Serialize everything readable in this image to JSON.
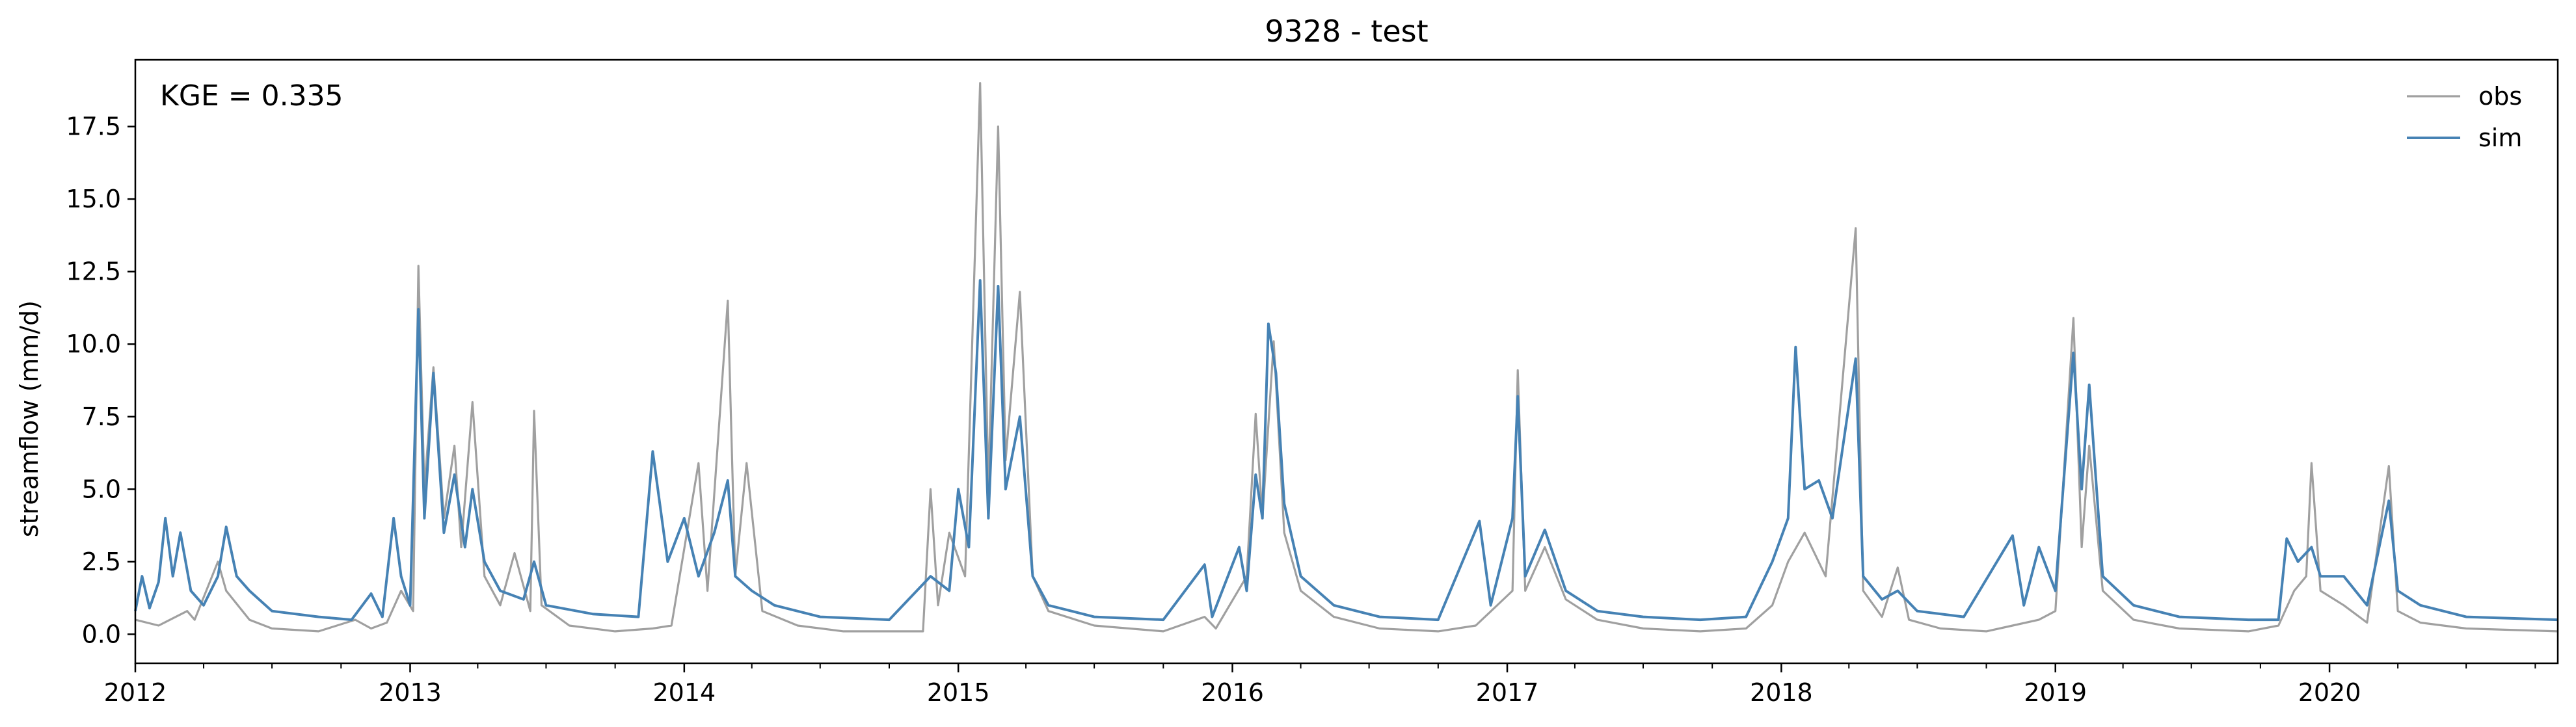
{
  "chart_data": {
    "type": "line",
    "title": "9328 - test",
    "xlabel": "",
    "ylabel": "streamflow (mm/d)",
    "annotation": "KGE = 0.335",
    "xlim": [
      "2012-01-01",
      "2020-10-31"
    ],
    "ylim": [
      -1.0,
      19.8
    ],
    "grid": false,
    "legend_position": "top-right",
    "x_tick_labels": [
      "2012",
      "2013",
      "2014",
      "2015",
      "2016",
      "2017",
      "2018",
      "2019",
      "2020"
    ],
    "y_tick_labels": [
      "0.0",
      "2.5",
      "5.0",
      "7.5",
      "10.0",
      "12.5",
      "15.0",
      "17.5"
    ],
    "colors": {
      "obs": "#a0a0a0",
      "sim": "#4682b4"
    },
    "series": [
      {
        "name": "obs",
        "points": [
          [
            "2012-01-01",
            0.5
          ],
          [
            "2012-02-01",
            0.3
          ],
          [
            "2012-03-10",
            0.8
          ],
          [
            "2012-03-20",
            0.5
          ],
          [
            "2012-04-20",
            2.5
          ],
          [
            "2012-05-01",
            1.5
          ],
          [
            "2012-06-01",
            0.5
          ],
          [
            "2012-07-01",
            0.2
          ],
          [
            "2012-09-01",
            0.1
          ],
          [
            "2012-10-20",
            0.5
          ],
          [
            "2012-11-10",
            0.2
          ],
          [
            "2012-12-01",
            0.4
          ],
          [
            "2012-12-20",
            1.5
          ],
          [
            "2013-01-05",
            0.8
          ],
          [
            "2013-01-12",
            12.7
          ],
          [
            "2013-01-20",
            5.0
          ],
          [
            "2013-02-01",
            9.2
          ],
          [
            "2013-02-15",
            4.0
          ],
          [
            "2013-03-01",
            6.5
          ],
          [
            "2013-03-10",
            3.0
          ],
          [
            "2013-03-25",
            8.0
          ],
          [
            "2013-04-10",
            2.0
          ],
          [
            "2013-05-01",
            1.0
          ],
          [
            "2013-05-20",
            2.8
          ],
          [
            "2013-06-10",
            0.8
          ],
          [
            "2013-06-15",
            7.7
          ],
          [
            "2013-06-25",
            1.0
          ],
          [
            "2013-08-01",
            0.3
          ],
          [
            "2013-10-01",
            0.1
          ],
          [
            "2013-11-20",
            0.2
          ],
          [
            "2013-12-15",
            0.3
          ],
          [
            "2014-01-20",
            5.9
          ],
          [
            "2014-02-01",
            1.5
          ],
          [
            "2014-02-28",
            11.5
          ],
          [
            "2014-03-10",
            2.0
          ],
          [
            "2014-03-25",
            5.9
          ],
          [
            "2014-04-15",
            0.8
          ],
          [
            "2014-06-01",
            0.3
          ],
          [
            "2014-08-01",
            0.1
          ],
          [
            "2014-11-15",
            0.1
          ],
          [
            "2014-11-25",
            5.0
          ],
          [
            "2014-12-05",
            1.0
          ],
          [
            "2014-12-20",
            3.5
          ],
          [
            "2015-01-10",
            2.0
          ],
          [
            "2015-01-30",
            19.0
          ],
          [
            "2015-02-10",
            5.0
          ],
          [
            "2015-02-23",
            17.5
          ],
          [
            "2015-03-05",
            6.0
          ],
          [
            "2015-03-24",
            11.8
          ],
          [
            "2015-04-10",
            2.0
          ],
          [
            "2015-05-01",
            0.8
          ],
          [
            "2015-07-01",
            0.3
          ],
          [
            "2015-10-01",
            0.1
          ],
          [
            "2015-11-25",
            0.6
          ],
          [
            "2015-12-10",
            0.2
          ],
          [
            "2016-01-20",
            2.0
          ],
          [
            "2016-02-01",
            7.6
          ],
          [
            "2016-02-10",
            4.0
          ],
          [
            "2016-02-25",
            10.1
          ],
          [
            "2016-03-10",
            3.5
          ],
          [
            "2016-04-01",
            1.5
          ],
          [
            "2016-05-15",
            0.6
          ],
          [
            "2016-07-15",
            0.2
          ],
          [
            "2016-10-01",
            0.1
          ],
          [
            "2016-11-20",
            0.3
          ],
          [
            "2017-01-08",
            1.5
          ],
          [
            "2017-01-15",
            9.1
          ],
          [
            "2017-01-25",
            1.5
          ],
          [
            "2017-02-20",
            3.0
          ],
          [
            "2017-03-20",
            1.2
          ],
          [
            "2017-05-01",
            0.5
          ],
          [
            "2017-07-01",
            0.2
          ],
          [
            "2017-09-15",
            0.1
          ],
          [
            "2017-11-15",
            0.2
          ],
          [
            "2017-12-20",
            1.0
          ],
          [
            "2018-01-10",
            2.5
          ],
          [
            "2018-02-01",
            3.5
          ],
          [
            "2018-03-01",
            2.0
          ],
          [
            "2018-04-10",
            14.0
          ],
          [
            "2018-04-20",
            1.5
          ],
          [
            "2018-05-15",
            0.6
          ],
          [
            "2018-06-05",
            2.3
          ],
          [
            "2018-06-20",
            0.5
          ],
          [
            "2018-08-01",
            0.2
          ],
          [
            "2018-10-01",
            0.1
          ],
          [
            "2018-11-05",
            0.3
          ],
          [
            "2018-12-10",
            0.5
          ],
          [
            "2019-01-01",
            0.8
          ],
          [
            "2019-01-25",
            10.9
          ],
          [
            "2019-02-05",
            3.0
          ],
          [
            "2019-02-15",
            6.5
          ],
          [
            "2019-03-05",
            1.5
          ],
          [
            "2019-04-15",
            0.5
          ],
          [
            "2019-06-15",
            0.2
          ],
          [
            "2019-09-15",
            0.1
          ],
          [
            "2019-10-25",
            0.3
          ],
          [
            "2019-11-15",
            1.5
          ],
          [
            "2019-12-01",
            2.0
          ],
          [
            "2019-12-08",
            5.9
          ],
          [
            "2019-12-20",
            1.5
          ],
          [
            "2020-01-20",
            1.0
          ],
          [
            "2020-02-20",
            0.4
          ],
          [
            "2020-03-20",
            5.8
          ],
          [
            "2020-04-01",
            0.8
          ],
          [
            "2020-05-01",
            0.4
          ],
          [
            "2020-07-01",
            0.2
          ],
          [
            "2020-10-31",
            0.1
          ]
        ]
      },
      {
        "name": "sim",
        "points": [
          [
            "2012-01-01",
            0.8
          ],
          [
            "2012-01-10",
            2.0
          ],
          [
            "2012-01-20",
            0.9
          ],
          [
            "2012-02-01",
            1.8
          ],
          [
            "2012-02-10",
            4.0
          ],
          [
            "2012-02-20",
            2.0
          ],
          [
            "2012-03-01",
            3.5
          ],
          [
            "2012-03-15",
            1.5
          ],
          [
            "2012-04-01",
            1.0
          ],
          [
            "2012-04-20",
            2.0
          ],
          [
            "2012-05-01",
            3.7
          ],
          [
            "2012-05-15",
            2.0
          ],
          [
            "2012-06-01",
            1.5
          ],
          [
            "2012-07-01",
            0.8
          ],
          [
            "2012-09-01",
            0.6
          ],
          [
            "2012-10-15",
            0.5
          ],
          [
            "2012-11-10",
            1.4
          ],
          [
            "2012-11-25",
            0.6
          ],
          [
            "2012-12-10",
            4.0
          ],
          [
            "2012-12-20",
            2.0
          ],
          [
            "2013-01-01",
            1.0
          ],
          [
            "2013-01-12",
            11.2
          ],
          [
            "2013-01-20",
            4.0
          ],
          [
            "2013-02-01",
            9.0
          ],
          [
            "2013-02-15",
            3.5
          ],
          [
            "2013-03-01",
            5.5
          ],
          [
            "2013-03-15",
            3.0
          ],
          [
            "2013-03-25",
            5.0
          ],
          [
            "2013-04-10",
            2.5
          ],
          [
            "2013-05-01",
            1.5
          ],
          [
            "2013-06-01",
            1.2
          ],
          [
            "2013-06-15",
            2.5
          ],
          [
            "2013-07-01",
            1.0
          ],
          [
            "2013-09-01",
            0.7
          ],
          [
            "2013-11-01",
            0.6
          ],
          [
            "2013-11-20",
            6.3
          ],
          [
            "2013-12-10",
            2.5
          ],
          [
            "2014-01-01",
            4.0
          ],
          [
            "2014-01-20",
            2.0
          ],
          [
            "2014-02-10",
            3.5
          ],
          [
            "2014-02-28",
            5.3
          ],
          [
            "2014-03-10",
            2.0
          ],
          [
            "2014-04-01",
            1.5
          ],
          [
            "2014-05-01",
            1.0
          ],
          [
            "2014-07-01",
            0.6
          ],
          [
            "2014-10-01",
            0.5
          ],
          [
            "2014-11-25",
            2.0
          ],
          [
            "2014-12-20",
            1.5
          ],
          [
            "2015-01-01",
            5.0
          ],
          [
            "2015-01-15",
            3.0
          ],
          [
            "2015-01-30",
            12.2
          ],
          [
            "2015-02-10",
            4.0
          ],
          [
            "2015-02-23",
            12.0
          ],
          [
            "2015-03-05",
            5.0
          ],
          [
            "2015-03-24",
            7.5
          ],
          [
            "2015-04-10",
            2.0
          ],
          [
            "2015-05-01",
            1.0
          ],
          [
            "2015-07-01",
            0.6
          ],
          [
            "2015-10-01",
            0.5
          ],
          [
            "2015-11-25",
            2.4
          ],
          [
            "2015-12-05",
            0.6
          ],
          [
            "2016-01-10",
            3.0
          ],
          [
            "2016-01-20",
            1.5
          ],
          [
            "2016-02-01",
            5.5
          ],
          [
            "2016-02-10",
            4.0
          ],
          [
            "2016-02-18",
            10.7
          ],
          [
            "2016-02-28",
            9.0
          ],
          [
            "2016-03-10",
            4.5
          ],
          [
            "2016-04-01",
            2.0
          ],
          [
            "2016-05-15",
            1.0
          ],
          [
            "2016-07-15",
            0.6
          ],
          [
            "2016-10-01",
            0.5
          ],
          [
            "2016-11-25",
            3.9
          ],
          [
            "2016-12-10",
            1.0
          ],
          [
            "2017-01-08",
            4.0
          ],
          [
            "2017-01-15",
            8.2
          ],
          [
            "2017-01-25",
            2.0
          ],
          [
            "2017-02-20",
            3.6
          ],
          [
            "2017-03-20",
            1.5
          ],
          [
            "2017-05-01",
            0.8
          ],
          [
            "2017-07-01",
            0.6
          ],
          [
            "2017-09-15",
            0.5
          ],
          [
            "2017-11-15",
            0.6
          ],
          [
            "2017-12-20",
            2.5
          ],
          [
            "2018-01-10",
            4.0
          ],
          [
            "2018-01-20",
            9.9
          ],
          [
            "2018-02-01",
            5.0
          ],
          [
            "2018-02-20",
            5.3
          ],
          [
            "2018-03-10",
            4.0
          ],
          [
            "2018-04-10",
            9.5
          ],
          [
            "2018-04-20",
            2.0
          ],
          [
            "2018-05-15",
            1.2
          ],
          [
            "2018-06-05",
            1.5
          ],
          [
            "2018-07-01",
            0.8
          ],
          [
            "2018-09-01",
            0.6
          ],
          [
            "2018-11-05",
            3.4
          ],
          [
            "2018-11-20",
            1.0
          ],
          [
            "2018-12-10",
            3.0
          ],
          [
            "2019-01-01",
            1.5
          ],
          [
            "2019-01-25",
            9.7
          ],
          [
            "2019-02-05",
            5.0
          ],
          [
            "2019-02-15",
            8.6
          ],
          [
            "2019-03-05",
            2.0
          ],
          [
            "2019-04-15",
            1.0
          ],
          [
            "2019-06-15",
            0.6
          ],
          [
            "2019-09-15",
            0.5
          ],
          [
            "2019-10-25",
            0.5
          ],
          [
            "2019-11-05",
            3.3
          ],
          [
            "2019-11-20",
            2.5
          ],
          [
            "2019-12-08",
            3.0
          ],
          [
            "2019-12-20",
            2.0
          ],
          [
            "2020-01-20",
            2.0
          ],
          [
            "2020-02-20",
            1.0
          ],
          [
            "2020-03-20",
            4.6
          ],
          [
            "2020-04-01",
            1.5
          ],
          [
            "2020-05-01",
            1.0
          ],
          [
            "2020-07-01",
            0.6
          ],
          [
            "2020-10-31",
            0.5
          ]
        ]
      }
    ]
  }
}
